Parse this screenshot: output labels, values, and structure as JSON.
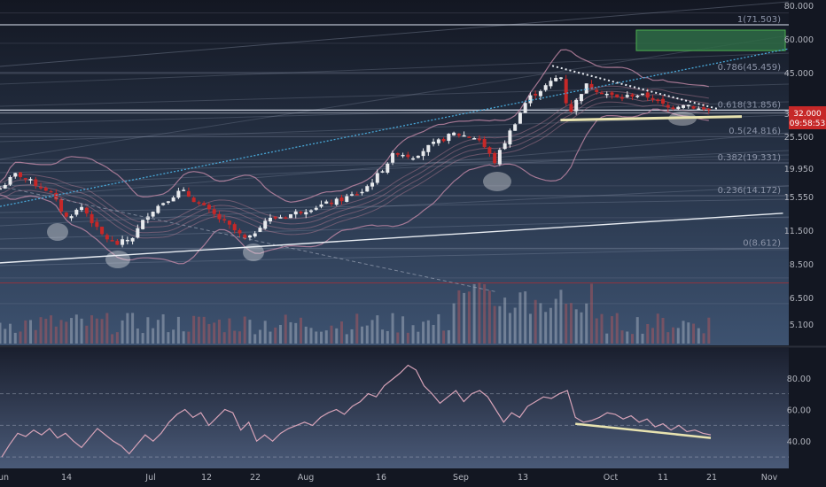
{
  "chart_data": [
    {
      "type": "candlestick",
      "x_axis": {
        "ticks": [
          "un",
          "14",
          "Jul",
          "12",
          "22",
          "Aug",
          "16",
          "Sep",
          "13",
          "Oct",
          "11",
          "21",
          "Nov"
        ]
      },
      "y_axis": {
        "scale": "log",
        "ylim": [
          4.2,
          86
        ],
        "ticks": [
          "80.000",
          "60.000",
          "45.000",
          "32.000",
          "25.500",
          "19.950",
          "15.550",
          "11.500",
          "8.500",
          "6.500",
          "5.100"
        ]
      },
      "last_price": {
        "label": "32.000",
        "countdown": "09:58:53",
        "value": 32.0
      },
      "fibonacci": [
        {
          "level": "1",
          "price": 71.503,
          "label": "1(71.503)"
        },
        {
          "level": "0.786",
          "price": 45.459,
          "label": "0.786(45.459)"
        },
        {
          "level": "0.618",
          "price": 31.856,
          "label": "0.618(31.856)"
        },
        {
          "level": "0.5",
          "price": 24.816,
          "label": "0.5(24.816)"
        },
        {
          "level": "0.382",
          "price": 19.331,
          "label": "0.382(19.331)"
        },
        {
          "level": "0.236",
          "price": 14.172,
          "label": "0.236(14.172)"
        },
        {
          "level": "0",
          "price": 8.612,
          "label": "0(8.612)"
        }
      ],
      "series": [
        {
          "name": "",
          "type": "candle",
          "colors": {
            "up": "#e8eaed",
            "down": "#c62828"
          }
        },
        {
          "name": "",
          "type": "volume"
        },
        {
          "name": "",
          "type": "bollinger_bands"
        },
        {
          "name": "",
          "type": "moving_averages"
        }
      ],
      "approx_close": [
        {
          "t": 0.0,
          "v": 15.2
        },
        {
          "t": 0.02,
          "v": 17.5
        },
        {
          "t": 0.04,
          "v": 16.0
        },
        {
          "t": 0.06,
          "v": 14.8
        },
        {
          "t": 0.08,
          "v": 11.5
        },
        {
          "t": 0.1,
          "v": 12.8
        },
        {
          "t": 0.12,
          "v": 10.0
        },
        {
          "t": 0.14,
          "v": 8.9
        },
        {
          "t": 0.16,
          "v": 9.5
        },
        {
          "t": 0.18,
          "v": 12.0
        },
        {
          "t": 0.2,
          "v": 13.5
        },
        {
          "t": 0.22,
          "v": 14.9
        },
        {
          "t": 0.25,
          "v": 12.5
        },
        {
          "t": 0.28,
          "v": 10.5
        },
        {
          "t": 0.3,
          "v": 9.2
        },
        {
          "t": 0.32,
          "v": 11.2
        },
        {
          "t": 0.35,
          "v": 11.8
        },
        {
          "t": 0.38,
          "v": 12.7
        },
        {
          "t": 0.41,
          "v": 13.5
        },
        {
          "t": 0.44,
          "v": 14.8
        },
        {
          "t": 0.46,
          "v": 17.5
        },
        {
          "t": 0.48,
          "v": 21.5
        },
        {
          "t": 0.5,
          "v": 20.5
        },
        {
          "t": 0.52,
          "v": 22.5
        },
        {
          "t": 0.55,
          "v": 25.5
        },
        {
          "t": 0.58,
          "v": 24.5
        },
        {
          "t": 0.6,
          "v": 19.5
        },
        {
          "t": 0.62,
          "v": 26.5
        },
        {
          "t": 0.64,
          "v": 35.5
        },
        {
          "t": 0.66,
          "v": 39.5
        },
        {
          "t": 0.68,
          "v": 44.5
        },
        {
          "t": 0.69,
          "v": 30.5
        },
        {
          "t": 0.71,
          "v": 40.5
        },
        {
          "t": 0.73,
          "v": 38.0
        },
        {
          "t": 0.75,
          "v": 35.5
        },
        {
          "t": 0.77,
          "v": 37.0
        },
        {
          "t": 0.79,
          "v": 36.0
        },
        {
          "t": 0.81,
          "v": 32.5
        },
        {
          "t": 0.83,
          "v": 34.0
        },
        {
          "t": 0.85,
          "v": 32.0
        },
        {
          "t": 0.86,
          "v": 32.0
        }
      ],
      "annotations": [
        {
          "kind": "channel",
          "from": {
            "t": 0.0,
            "v": 7.5
          },
          "to": {
            "t": 0.95,
            "v": 12.0
          }
        },
        {
          "kind": "support",
          "from": {
            "t": 0.68,
            "v": 29.0
          },
          "to": {
            "t": 0.9,
            "v": 30.0
          }
        },
        {
          "kind": "resistance",
          "from": {
            "t": 0.67,
            "v": 48.5
          },
          "to": {
            "t": 0.87,
            "v": 32.3
          }
        },
        {
          "kind": "target_zone",
          "range": [
            56.0,
            68.0
          ]
        }
      ]
    },
    {
      "type": "line",
      "y_axis": {
        "ylim": [
          25,
          95
        ],
        "ticks": [
          "80.00",
          "60.00",
          "40.00"
        ]
      },
      "series": [
        {
          "name": "",
          "values": [
            30,
            38,
            45,
            43,
            47,
            44,
            48,
            42,
            45,
            40,
            36,
            42,
            48,
            44,
            40,
            37,
            32,
            38,
            44,
            40,
            45,
            52,
            57,
            60,
            55,
            58,
            50,
            55,
            60,
            58,
            47,
            52,
            40,
            44,
            40,
            45,
            48,
            50,
            52,
            50,
            55,
            58,
            60,
            57,
            62,
            65,
            70,
            68,
            75,
            79,
            83,
            88,
            85,
            75,
            70,
            64,
            68,
            72,
            65,
            70,
            72,
            68,
            60,
            52,
            58,
            55,
            62,
            65,
            68,
            67,
            70,
            72,
            55,
            52,
            53,
            55,
            58,
            57,
            54,
            56,
            52,
            54,
            49,
            51,
            47,
            50,
            46,
            47,
            45,
            44
          ]
        }
      ],
      "annotations": [
        {
          "kind": "divergence",
          "from": {
            "i": 72,
            "v": 51.0
          },
          "to": {
            "i": 89,
            "v": 42.0
          }
        }
      ]
    }
  ],
  "colors": {
    "background_top": "#131722",
    "background_bottom": "#3d5270",
    "up": "#e8eaed",
    "down": "#c62828",
    "trend_line": "#e8e3b0",
    "target_zone": "#2e6b45"
  }
}
